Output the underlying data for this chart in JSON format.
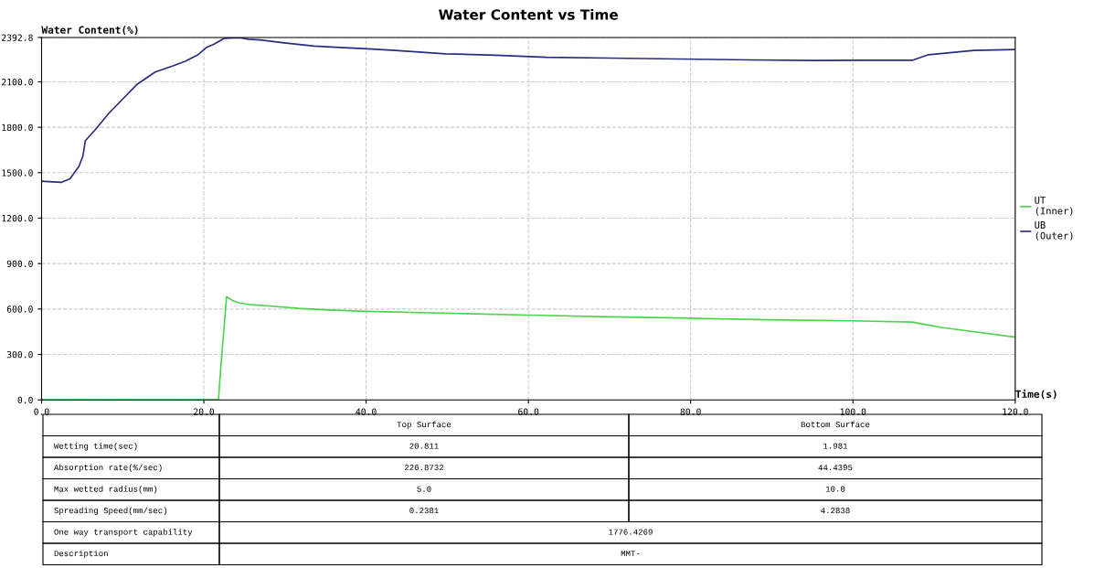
{
  "chart_data": {
    "type": "line",
    "title": "Water Content vs Time",
    "xlabel": "Time(s)",
    "ylabel": "Water Content(%)",
    "xlim": [
      0,
      120
    ],
    "ylim": [
      0,
      2392.8
    ],
    "xticks": [
      {
        "value": 0,
        "label": "0.0"
      },
      {
        "value": 20,
        "label": "20.0"
      },
      {
        "value": 40,
        "label": "40.0"
      },
      {
        "value": 60,
        "label": "60.0"
      },
      {
        "value": 80,
        "label": "80.0"
      },
      {
        "value": 100,
        "label": "100.0"
      },
      {
        "value": 120,
        "label": "120.0"
      }
    ],
    "yticks": [
      {
        "value": 0,
        "label": "0.0"
      },
      {
        "value": 300,
        "label": "300.0"
      },
      {
        "value": 600,
        "label": "600.0"
      },
      {
        "value": 900,
        "label": "900.0"
      },
      {
        "value": 1200,
        "label": "1200.0"
      },
      {
        "value": 1500,
        "label": "1500.0"
      },
      {
        "value": 1800,
        "label": "1800.0"
      },
      {
        "value": 2100,
        "label": "2100.0"
      },
      2392.8
    ],
    "grid": true,
    "legend": "right",
    "line_style": "solid",
    "series": [
      {
        "name": "UT\n(Inner)",
        "color": "#4cd44c",
        "x": [
          0,
          21.8,
          22.1,
          22.8,
          23.6,
          24.4,
          25.8,
          28.0,
          31.7,
          35.4,
          40,
          50.4,
          60,
          70,
          80.1,
          89.6,
          100,
          107.3,
          110.9,
          120
        ],
        "values": [
          0,
          0,
          222,
          681,
          654,
          640,
          628,
          620,
          604,
          594,
          585,
          572,
          560,
          548,
          539,
          529,
          522,
          514,
          478,
          414
        ]
      },
      {
        "name": "UB\n(Outer)",
        "color": "#2b2b80",
        "x": [
          0,
          2.4,
          3.5,
          4.6,
          5.1,
          5.4,
          6.6,
          8.3,
          9.6,
          11.8,
          14.0,
          16.2,
          17.7,
          19.2,
          20.3,
          21.2,
          22.5,
          24.4,
          25.5,
          26.9,
          29.9,
          33.6,
          37.3,
          40.2,
          43.6,
          49.8,
          56.0,
          62.2,
          70.0,
          78.4,
          87.4,
          95.3,
          100.9,
          107.3,
          109.3,
          114.9,
          120
        ],
        "values": [
          1444,
          1436,
          1460,
          1541,
          1611,
          1712,
          1783,
          1893,
          1964,
          2085,
          2165,
          2206,
          2236,
          2276,
          2326,
          2347,
          2387,
          2392,
          2381,
          2377,
          2357,
          2336,
          2326,
          2318,
          2307,
          2285,
          2276,
          2262,
          2257,
          2251,
          2245,
          2241,
          2242,
          2242,
          2279,
          2307,
          2313
        ]
      }
    ],
    "annotations": [
      "Top Surface",
      "Bottom Surface",
      "Wetting time(sec)",
      "20.811",
      "1.981",
      "Absorption rate(%/sec)",
      "226.8732",
      "44.4395",
      "Max wetted radius(mm)",
      "5.0",
      "10.0",
      "Spreading Speed(mm/sec)",
      "0.2381",
      "4.2838",
      "One way transport capability",
      "1776.4269",
      "Description",
      "MMT-"
    ]
  }
}
